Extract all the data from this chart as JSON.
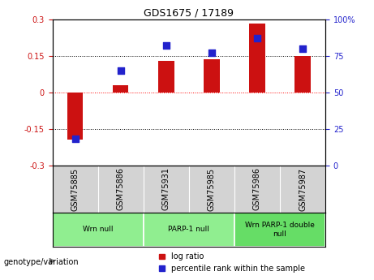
{
  "title": "GDS1675 / 17189",
  "samples": [
    "GSM75885",
    "GSM75886",
    "GSM75931",
    "GSM75985",
    "GSM75986",
    "GSM75987"
  ],
  "log_ratio": [
    -0.195,
    0.03,
    0.13,
    0.135,
    0.285,
    0.15
  ],
  "percentile_rank": [
    18,
    65,
    82,
    77,
    87,
    80
  ],
  "groups": [
    {
      "label": "Wrn null",
      "start": 0,
      "end": 2,
      "color": "#90EE90"
    },
    {
      "label": "PARP-1 null",
      "start": 2,
      "end": 4,
      "color": "#90EE90"
    },
    {
      "label": "Wrn PARP-1 double\nnull",
      "start": 4,
      "end": 6,
      "color": "#66DD66"
    }
  ],
  "bar_color": "#CC1111",
  "dot_color": "#2222CC",
  "ylim_left": [
    -0.3,
    0.3
  ],
  "ylim_right": [
    0,
    100
  ],
  "yticks_left": [
    -0.3,
    -0.15,
    0,
    0.15,
    0.3
  ],
  "yticks_right": [
    0,
    25,
    50,
    75,
    100
  ],
  "hlines": [
    -0.15,
    0,
    0.15
  ],
  "hline_colors": [
    "black",
    "red",
    "black"
  ],
  "hline_styles": [
    "dotted",
    "dotted",
    "dotted"
  ],
  "bar_width": 0.35,
  "dot_size": 30,
  "plot_bg": "#ffffff",
  "sample_bg": "#d3d3d3",
  "genotype_label": "genotype/variation",
  "legend_log_ratio": "log ratio",
  "legend_percentile": "percentile rank within the sample",
  "title_fontsize": 9,
  "tick_fontsize": 7,
  "label_fontsize": 7
}
